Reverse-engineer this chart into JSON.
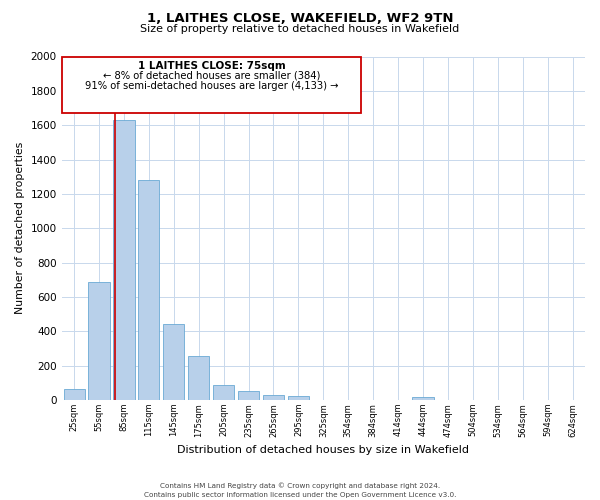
{
  "title": "1, LAITHES CLOSE, WAKEFIELD, WF2 9TN",
  "subtitle": "Size of property relative to detached houses in Wakefield",
  "xlabel": "Distribution of detached houses by size in Wakefield",
  "ylabel": "Number of detached properties",
  "bar_color": "#b8d0ea",
  "bar_edge_color": "#6aaad4",
  "background_color": "#ffffff",
  "grid_color": "#c8d8ec",
  "annotation_box_color": "#cc0000",
  "annotation_line_color": "#cc0000",
  "annotation_title": "1 LAITHES CLOSE: 75sqm",
  "annotation_line1": "← 8% of detached houses are smaller (384)",
  "annotation_line2": "91% of semi-detached houses are larger (4,133) →",
  "footer_line1": "Contains HM Land Registry data © Crown copyright and database right 2024.",
  "footer_line2": "Contains public sector information licensed under the Open Government Licence v3.0.",
  "categories": [
    "25sqm",
    "55sqm",
    "85sqm",
    "115sqm",
    "145sqm",
    "175sqm",
    "205sqm",
    "235sqm",
    "265sqm",
    "295sqm",
    "325sqm",
    "354sqm",
    "384sqm",
    "414sqm",
    "444sqm",
    "474sqm",
    "504sqm",
    "534sqm",
    "564sqm",
    "594sqm",
    "624sqm"
  ],
  "values": [
    65,
    690,
    1630,
    1280,
    440,
    255,
    90,
    50,
    30,
    22,
    0,
    0,
    0,
    0,
    15,
    0,
    0,
    0,
    0,
    0,
    0
  ],
  "property_bin_index": 2,
  "ylim": [
    0,
    2000
  ],
  "yticks": [
    0,
    200,
    400,
    600,
    800,
    1000,
    1200,
    1400,
    1600,
    1800,
    2000
  ]
}
